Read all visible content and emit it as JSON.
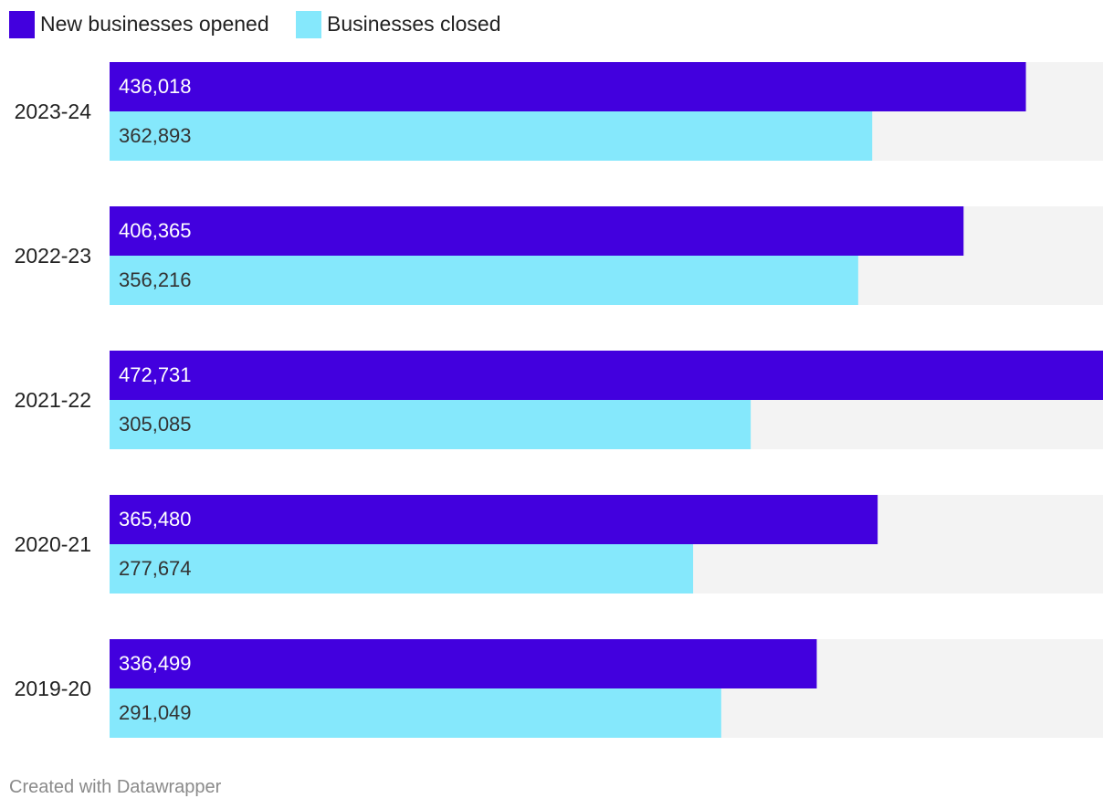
{
  "chart_data": {
    "type": "bar",
    "orientation": "horizontal",
    "categories": [
      "2023-24",
      "2022-23",
      "2021-22",
      "2020-21",
      "2019-20"
    ],
    "series": [
      {
        "name": "New businesses opened",
        "color": "#4200de",
        "label_color": "#ffffff",
        "values": [
          436018,
          406365,
          472731,
          365480,
          336499
        ],
        "labels": [
          "436,018",
          "406,365",
          "472,731",
          "365,480",
          "336,499"
        ]
      },
      {
        "name": "Businesses closed",
        "color": "#85e8fc",
        "label_color": "#333333",
        "values": [
          362893,
          356216,
          305085,
          277674,
          291049
        ],
        "labels": [
          "362,893",
          "356,216",
          "305,085",
          "277,674",
          "291,049"
        ]
      }
    ],
    "xlim": [
      0,
      472731
    ],
    "background_band_color": "#f3f3f3",
    "legend_position": "top-left",
    "grid": false
  },
  "footer": {
    "credit": "Created with Datawrapper"
  }
}
